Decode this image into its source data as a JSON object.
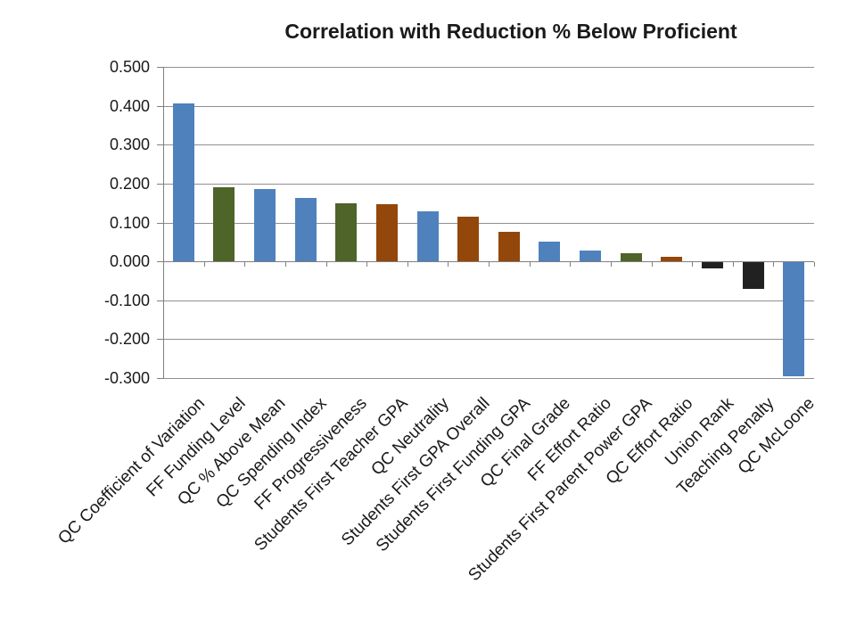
{
  "chart_data": {
    "type": "bar",
    "title": "Correlation with Reduction % Below Proficient",
    "categories": [
      "QC Coefficient of Variation",
      "FF Funding Level",
      "QC % Above Mean",
      "QC Spending Index",
      "FF Progressiveness",
      "Students First Teacher GPA",
      "QC Neutrality",
      "Students First GPA Overall",
      "Students First Funding GPA",
      "QC Final Grade",
      "FF Effort Ratio",
      "Students First Parent Power GPA",
      "QC Effort Ratio",
      "Union Rank",
      "Teaching Penalty",
      "QC McLoone"
    ],
    "values": [
      0.405,
      0.191,
      0.186,
      0.162,
      0.15,
      0.146,
      0.128,
      0.115,
      0.076,
      0.051,
      0.027,
      0.022,
      0.012,
      -0.016,
      -0.068,
      -0.294
    ],
    "bar_colors": [
      "#4F81BD",
      "#4E6428",
      "#4F81BD",
      "#4F81BD",
      "#4E6428",
      "#94470B",
      "#4F81BD",
      "#94470B",
      "#94470B",
      "#4F81BD",
      "#4F81BD",
      "#4E6428",
      "#94470B",
      "#212121",
      "#212121",
      "#4F81BD"
    ],
    "y_ticks": [
      "0.500",
      "0.400",
      "0.300",
      "0.200",
      "0.100",
      "0.000",
      "-0.100",
      "-0.200",
      "-0.300"
    ],
    "ylim": [
      -0.3,
      0.5
    ],
    "xlabel": "",
    "ylabel": "",
    "grid": true,
    "legend": false,
    "palette": {
      "blue": "#4F81BD",
      "olive": "#4E6428",
      "brown": "#94470B",
      "black": "#212121",
      "gridline": "#909090",
      "axis": "#808080",
      "text": "#1a1a1a"
    }
  }
}
